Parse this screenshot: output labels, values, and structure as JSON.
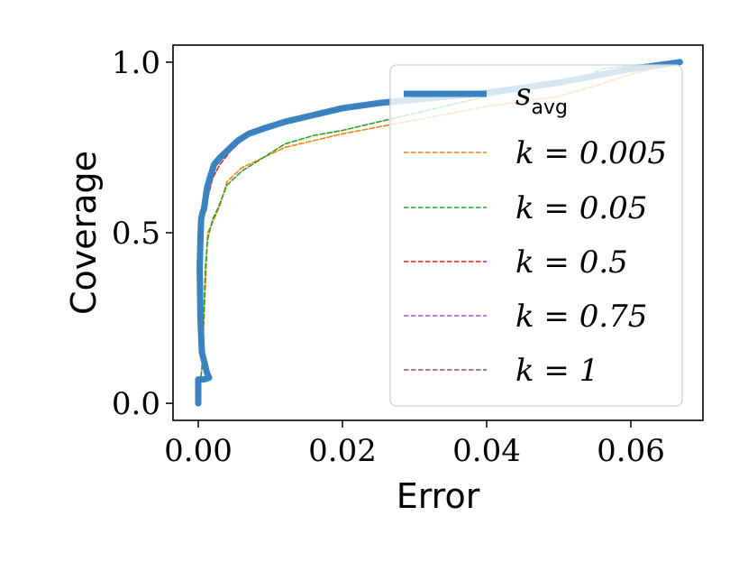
{
  "chart_data": {
    "type": "line",
    "title": "",
    "xlabel": "Error",
    "ylabel": "Coverage",
    "xlim": [
      -0.0035,
      0.07
    ],
    "ylim": [
      -0.05,
      1.05
    ],
    "x_ticks": [
      "0.00",
      "0.02",
      "0.04",
      "0.06"
    ],
    "x_tick_values": [
      0.0,
      0.02,
      0.04,
      0.06
    ],
    "y_ticks": [
      "0.0",
      "0.5",
      "1.0"
    ],
    "y_tick_values": [
      0.0,
      0.5,
      1.0
    ],
    "grid": false,
    "legend_position": "right",
    "series": [
      {
        "name": "s",
        "name_subscript": "avg",
        "color": "#3a82c0",
        "style": "solid",
        "x": [
          0.0,
          0.0,
          0.0002,
          0.0002,
          0.0008,
          0.0015,
          0.0012,
          0.0005,
          0.0003,
          0.0002,
          0.0003,
          0.0004,
          0.0006,
          0.0008,
          0.001,
          0.0012,
          0.0016,
          0.0022,
          0.003,
          0.004,
          0.0055,
          0.007,
          0.009,
          0.012,
          0.016,
          0.02,
          0.025,
          0.03,
          0.035,
          0.04,
          0.045,
          0.05,
          0.055,
          0.06,
          0.0668
        ],
        "y": [
          0.0,
          0.07,
          0.07,
          0.07,
          0.07,
          0.075,
          0.09,
          0.15,
          0.25,
          0.4,
          0.48,
          0.54,
          0.56,
          0.57,
          0.6,
          0.63,
          0.66,
          0.7,
          0.72,
          0.74,
          0.77,
          0.79,
          0.805,
          0.825,
          0.845,
          0.865,
          0.88,
          0.89,
          0.9,
          0.91,
          0.925,
          0.94,
          0.96,
          0.98,
          1.0
        ]
      },
      {
        "name": "k = 0.005",
        "color": "#ff7f0e",
        "style": "dashed",
        "x": [
          0.0,
          0.0,
          0.0003,
          0.0005,
          0.001,
          0.0013,
          0.002,
          0.003,
          0.004,
          0.006,
          0.009,
          0.012,
          0.016,
          0.02,
          0.025,
          0.03,
          0.035,
          0.04,
          0.045,
          0.05,
          0.055,
          0.06,
          0.0668
        ],
        "y": [
          0.0,
          0.07,
          0.07,
          0.1,
          0.35,
          0.5,
          0.53,
          0.58,
          0.65,
          0.69,
          0.72,
          0.75,
          0.77,
          0.79,
          0.81,
          0.83,
          0.85,
          0.87,
          0.885,
          0.9,
          0.93,
          0.965,
          1.0
        ]
      },
      {
        "name": "k = 0.05",
        "color": "#2ca02c",
        "style": "dashed",
        "x": [
          0.0,
          0.0,
          0.0003,
          0.0005,
          0.001,
          0.0013,
          0.002,
          0.0027,
          0.004,
          0.006,
          0.009,
          0.012,
          0.016,
          0.02,
          0.025,
          0.03,
          0.035,
          0.04,
          0.045,
          0.05,
          0.054,
          0.056,
          0.06,
          0.0668
        ],
        "y": [
          0.0,
          0.07,
          0.07,
          0.1,
          0.4,
          0.48,
          0.54,
          0.57,
          0.64,
          0.68,
          0.72,
          0.76,
          0.785,
          0.8,
          0.825,
          0.85,
          0.875,
          0.9,
          0.92,
          0.94,
          0.96,
          0.98,
          0.99,
          1.0
        ]
      },
      {
        "name": "k = 0.5",
        "color": "#d62728",
        "style": "dashed",
        "x": [
          0.0,
          0.0,
          0.0002,
          0.0002,
          0.0008,
          0.0015,
          0.0012,
          0.0005,
          0.0003,
          0.0002,
          0.0004,
          0.0007,
          0.001,
          0.0014,
          0.002,
          0.003,
          0.0045,
          0.006,
          0.0075,
          0.0095,
          0.0125,
          0.016,
          0.02,
          0.025,
          0.03,
          0.035,
          0.04,
          0.045,
          0.05,
          0.055,
          0.06,
          0.0668
        ],
        "y": [
          0.0,
          0.07,
          0.07,
          0.07,
          0.07,
          0.075,
          0.09,
          0.15,
          0.25,
          0.4,
          0.5,
          0.54,
          0.57,
          0.61,
          0.66,
          0.7,
          0.74,
          0.77,
          0.79,
          0.805,
          0.825,
          0.845,
          0.865,
          0.88,
          0.89,
          0.9,
          0.91,
          0.925,
          0.94,
          0.96,
          0.98,
          1.0
        ]
      },
      {
        "name": "k = 0.75",
        "color": "#9467bd",
        "style": "dashed",
        "x": [
          0.0,
          0.0,
          0.0002,
          0.0002,
          0.0008,
          0.0015,
          0.0012,
          0.0005,
          0.0003,
          0.0002,
          0.0003,
          0.0004,
          0.0006,
          0.0008,
          0.001,
          0.0012,
          0.0016,
          0.0022,
          0.003,
          0.004,
          0.0055,
          0.007,
          0.009,
          0.012,
          0.016,
          0.02,
          0.025,
          0.03,
          0.035,
          0.04,
          0.045,
          0.05,
          0.055,
          0.06,
          0.0668
        ],
        "y": [
          0.0,
          0.07,
          0.07,
          0.07,
          0.07,
          0.075,
          0.09,
          0.15,
          0.25,
          0.4,
          0.48,
          0.54,
          0.56,
          0.57,
          0.6,
          0.63,
          0.66,
          0.7,
          0.72,
          0.74,
          0.77,
          0.79,
          0.805,
          0.825,
          0.845,
          0.865,
          0.88,
          0.89,
          0.9,
          0.91,
          0.925,
          0.94,
          0.96,
          0.98,
          1.0
        ]
      },
      {
        "name": "k = 1",
        "color": "#8c564b",
        "style": "dashed",
        "x": [
          0.0,
          0.0,
          0.0002,
          0.0002,
          0.0008,
          0.0015,
          0.0012,
          0.0005,
          0.0003,
          0.0002,
          0.0003,
          0.0004,
          0.0006,
          0.0008,
          0.001,
          0.0012,
          0.0016,
          0.0022,
          0.003,
          0.004,
          0.0055,
          0.007,
          0.009,
          0.012,
          0.016,
          0.02,
          0.025,
          0.03,
          0.035,
          0.04,
          0.045,
          0.05,
          0.055,
          0.06,
          0.0668
        ],
        "y": [
          0.0,
          0.07,
          0.07,
          0.07,
          0.07,
          0.075,
          0.09,
          0.15,
          0.25,
          0.4,
          0.48,
          0.54,
          0.56,
          0.57,
          0.6,
          0.63,
          0.66,
          0.7,
          0.72,
          0.74,
          0.77,
          0.79,
          0.805,
          0.825,
          0.845,
          0.865,
          0.88,
          0.89,
          0.9,
          0.91,
          0.925,
          0.94,
          0.96,
          0.98,
          1.0
        ]
      }
    ]
  }
}
